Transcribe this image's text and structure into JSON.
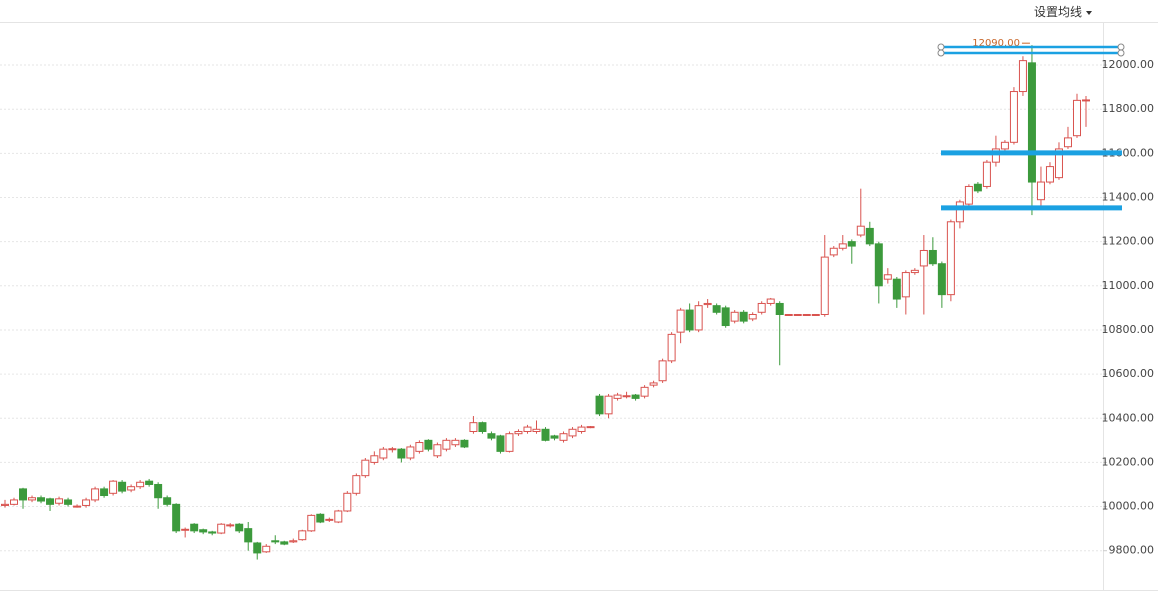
{
  "chart_data": {
    "type": "candlestick",
    "button": "设置均线",
    "annotation": "12090.00",
    "up_color": "#d9534f",
    "down_color": "#3c9a3c",
    "line_color": "#1ba1e2",
    "ylim": [
      9622,
      12195
    ],
    "yticks": [
      {
        "value": 9800,
        "label": "9800.00"
      },
      {
        "value": 10000,
        "label": "10000.00"
      },
      {
        "value": 10200,
        "label": "10200.00"
      },
      {
        "value": 10400,
        "label": "10400.00"
      },
      {
        "value": 10600,
        "label": "10600.00"
      },
      {
        "value": 10800,
        "label": "10800.00"
      },
      {
        "value": 11000,
        "label": "11000.00"
      },
      {
        "value": 11200,
        "label": "11200.00"
      },
      {
        "value": 11400,
        "label": "11400.00"
      },
      {
        "value": 11600,
        "label": "11600.00"
      },
      {
        "value": 11800,
        "label": "11800.00"
      },
      {
        "value": 12000,
        "label": "12000.00"
      }
    ],
    "grid": true,
    "drawn_lines": [
      12068,
      11602,
      11353
    ],
    "open": [
      10005,
      10010,
      10080,
      10030,
      10040,
      10035,
      10015,
      10030,
      10000,
      10005,
      10030,
      10080,
      10060,
      10110,
      10075,
      10090,
      10115,
      10100,
      10040,
      10010,
      9893,
      9920,
      9895,
      9885,
      9880,
      9913,
      9920,
      9900,
      9835,
      9795,
      9845,
      9840,
      9840,
      9850,
      9890,
      9965,
      9938,
      9930,
      9980,
      10060,
      10140,
      10200,
      10220,
      10258,
      10260,
      10220,
      10250,
      10300,
      10230,
      10260,
      10280,
      10300,
      10340,
      10380,
      10330,
      10320,
      10250,
      10330,
      10340,
      10340,
      10350,
      10320,
      10300,
      10320,
      10340,
      10358,
      10500,
      10420,
      10490,
      10498,
      10505,
      10500,
      10550,
      10570,
      10660,
      10790,
      10890,
      10800,
      10915,
      10910,
      10900,
      10840,
      10880,
      10850,
      10880,
      10920,
      10920,
      10870,
      10870,
      10870,
      10870,
      10870,
      11140,
      11170,
      11200,
      11230,
      11260,
      11190,
      11030,
      11030,
      10950,
      11060,
      11090,
      11160,
      11100,
      10960,
      11290,
      11370,
      11460,
      11450,
      11560,
      11620,
      11650,
      11880,
      12010,
      11390,
      11470,
      11490,
      11630,
      11680,
      11838
    ],
    "high": [
      10030,
      10040,
      10085,
      10050,
      10050,
      10040,
      10045,
      10040,
      10010,
      10040,
      10090,
      10090,
      10120,
      10120,
      10100,
      10120,
      10125,
      10110,
      10050,
      10015,
      9905,
      9925,
      9900,
      9890,
      9925,
      9925,
      9925,
      9930,
      9840,
      9830,
      9870,
      9845,
      9855,
      9895,
      9965,
      9970,
      9950,
      9985,
      10070,
      10150,
      10220,
      10250,
      10270,
      10270,
      10265,
      10280,
      10300,
      10305,
      10290,
      10310,
      10310,
      10305,
      10410,
      10385,
      10340,
      10325,
      10340,
      10350,
      10370,
      10390,
      10360,
      10325,
      10340,
      10360,
      10370,
      10365,
      10510,
      10510,
      10515,
      10520,
      10510,
      10550,
      10570,
      10670,
      10790,
      10900,
      10920,
      10930,
      10940,
      10920,
      10910,
      10890,
      10890,
      10880,
      10930,
      10945,
      10930,
      10870,
      10870,
      10870,
      10870,
      11230,
      11180,
      11230,
      11210,
      11440,
      11290,
      11200,
      11080,
      11040,
      11070,
      11080,
      11230,
      11220,
      11110,
      11300,
      11390,
      11460,
      11470,
      11570,
      11680,
      11660,
      11900,
      12040,
      12090,
      11540,
      11560,
      11650,
      11720,
      11870,
      11860
    ],
    "low": [
      9995,
      10005,
      9990,
      10020,
      10015,
      9980,
      10005,
      10000,
      9995,
      9995,
      10020,
      10040,
      10050,
      10060,
      10065,
      10080,
      10090,
      9990,
      10000,
      9880,
      9860,
      9880,
      9875,
      9870,
      9875,
      9905,
      9880,
      9800,
      9760,
      9790,
      9830,
      9825,
      9835,
      9845,
      9885,
      9925,
      9930,
      9925,
      9975,
      10050,
      10130,
      10190,
      10210,
      10245,
      10200,
      10210,
      10240,
      10250,
      10220,
      10250,
      10270,
      10265,
      10330,
      10330,
      10300,
      10240,
      10245,
      10320,
      10330,
      10330,
      10295,
      10300,
      10290,
      10310,
      10330,
      10355,
      10410,
      10400,
      10480,
      10490,
      10480,
      10490,
      10540,
      10560,
      10650,
      10740,
      10790,
      10790,
      10900,
      10870,
      10810,
      10830,
      10830,
      10840,
      10870,
      10910,
      10640,
      10870,
      10870,
      10870,
      10870,
      10860,
      11130,
      11160,
      11100,
      11220,
      11180,
      10920,
      11010,
      10900,
      10870,
      11050,
      10870,
      11090,
      10900,
      10930,
      11260,
      11360,
      11420,
      11440,
      11540,
      11600,
      11640,
      11860,
      11320,
      11360,
      11460,
      11480,
      11620,
      11670,
      11720
    ],
    "close": [
      10010,
      10030,
      10030,
      10040,
      10025,
      10010,
      10035,
      10010,
      10002,
      10030,
      10080,
      10050,
      10115,
      10070,
      10090,
      10110,
      10100,
      10040,
      10010,
      9890,
      9897,
      9890,
      9885,
      9880,
      9920,
      9917,
      9890,
      9840,
      9790,
      9820,
      9840,
      9830,
      9845,
      9890,
      9960,
      9930,
      9942,
      9980,
      10060,
      10140,
      10210,
      10230,
      10260,
      10262,
      10220,
      10270,
      10290,
      10260,
      10280,
      10300,
      10300,
      10270,
      10380,
      10340,
      10310,
      10250,
      10330,
      10340,
      10360,
      10350,
      10300,
      10310,
      10330,
      10350,
      10360,
      10362,
      10420,
      10500,
      10505,
      10502,
      10490,
      10540,
      10560,
      10660,
      10780,
      10890,
      10800,
      10910,
      10920,
      10880,
      10820,
      10880,
      10840,
      10870,
      10920,
      10940,
      10870,
      10870,
      10870,
      10870,
      10870,
      11130,
      11170,
      11190,
      11180,
      11270,
      11190,
      11000,
      11050,
      10940,
      11060,
      11070,
      11160,
      11100,
      10960,
      11290,
      11380,
      11450,
      11430,
      11560,
      11620,
      11650,
      11880,
      12020,
      11470,
      11470,
      11540,
      11620,
      11670,
      11840,
      11842
    ]
  }
}
